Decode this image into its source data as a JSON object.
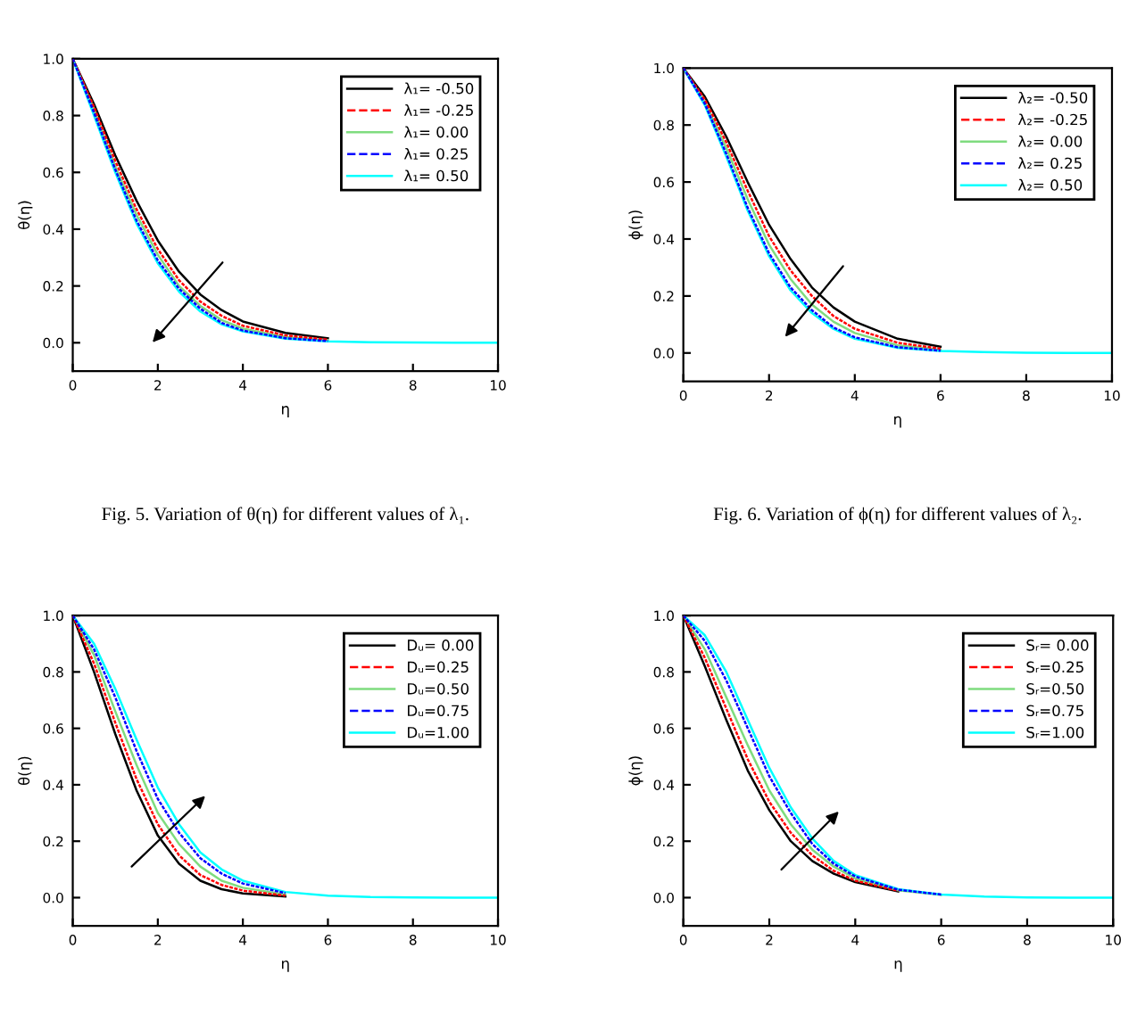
{
  "chart_data": [
    {
      "type": "line",
      "ylabel": "θ(η)",
      "xlabel": "η",
      "annotations": [
        "Fig. 5. Variation of θ(η) for different values of λ₁."
      ],
      "x": [
        0,
        0.5,
        1,
        1.5,
        2,
        2.5,
        3,
        3.5,
        4,
        5,
        6,
        7,
        8,
        9,
        10
      ],
      "xlim": [
        0,
        10
      ],
      "ylim": [
        -0.1,
        1.0
      ],
      "xticks": [
        0,
        2,
        4,
        6,
        8,
        10
      ],
      "yticks": [
        {
          "value": 0,
          "label": "0.0"
        },
        {
          "value": 0.2,
          "label": "0.2"
        },
        {
          "value": 0.4,
          "label": "0.4"
        },
        {
          "value": 0.6,
          "label": "0.6"
        },
        {
          "value": 0.8,
          "label": "0.8"
        },
        {
          "value": 1.0,
          "label": "1.0"
        }
      ],
      "legend": "top right",
      "grid": false,
      "series": [
        {
          "name": "λ₁= -0.50",
          "color": "#000000",
          "line_style": "solid",
          "values": [
            1,
            0.84,
            0.66,
            0.5,
            0.36,
            0.25,
            0.17,
            0.115,
            0.075,
            0.035,
            0.016,
            null,
            null,
            null,
            null
          ]
        },
        {
          "name": "λ₁= -0.25",
          "color": "#ff0000",
          "line_style": "dashed",
          "values": [
            1,
            0.83,
            0.64,
            0.47,
            0.33,
            0.22,
            0.145,
            0.095,
            0.06,
            0.026,
            0.011,
            null,
            null,
            null,
            null
          ]
        },
        {
          "name": "λ₁= 0.00",
          "color": "#7fdc7f",
          "line_style": "solid",
          "values": [
            1,
            0.82,
            0.62,
            0.45,
            0.31,
            0.2,
            0.13,
            0.08,
            0.05,
            0.02,
            0.008,
            null,
            null,
            null,
            null
          ]
        },
        {
          "name": "λ₁= 0.25",
          "color": "#0000ff",
          "line_style": "dashed",
          "values": [
            1,
            0.81,
            0.61,
            0.43,
            0.29,
            0.19,
            0.12,
            0.07,
            0.043,
            0.016,
            0.006,
            null,
            null,
            null,
            null
          ]
        },
        {
          "name": "λ₁= 0.50",
          "color": "#00ffff",
          "line_style": "solid",
          "values": [
            1,
            0.8,
            0.6,
            0.42,
            0.28,
            0.18,
            0.11,
            0.065,
            0.04,
            0.014,
            0.005,
            0.002,
            0.001,
            0,
            0
          ]
        }
      ]
    },
    {
      "type": "line",
      "ylabel": "ϕ(η)",
      "xlabel": "η",
      "annotations": [
        "Fig. 6. Variation of ϕ(η) for different values of λ₂."
      ],
      "x": [
        0,
        0.5,
        1,
        1.5,
        2,
        2.5,
        3,
        3.5,
        4,
        5,
        6,
        7,
        8,
        9,
        10
      ],
      "xlim": [
        0,
        10
      ],
      "ylim": [
        -0.1,
        1.0
      ],
      "xticks": [
        0,
        2,
        4,
        6,
        8,
        10
      ],
      "yticks": [
        {
          "value": 0,
          "label": "0.0"
        },
        {
          "value": 0.2,
          "label": "0.2"
        },
        {
          "value": 0.4,
          "label": "0.4"
        },
        {
          "value": 0.6,
          "label": "0.6"
        },
        {
          "value": 0.8,
          "label": "0.8"
        },
        {
          "value": 1.0,
          "label": "1.0"
        }
      ],
      "legend": "top right",
      "grid": false,
      "series": [
        {
          "name": "λ₂= -0.50",
          "color": "#000000",
          "line_style": "solid",
          "values": [
            1,
            0.9,
            0.76,
            0.6,
            0.45,
            0.33,
            0.23,
            0.16,
            0.11,
            0.05,
            0.022,
            null,
            null,
            null,
            null
          ]
        },
        {
          "name": "λ₂= -0.25",
          "color": "#ff0000",
          "line_style": "dashed",
          "values": [
            1,
            0.89,
            0.74,
            0.57,
            0.41,
            0.29,
            0.2,
            0.13,
            0.085,
            0.036,
            0.015,
            null,
            null,
            null,
            null
          ]
        },
        {
          "name": "λ₂= 0.00",
          "color": "#7fdc7f",
          "line_style": "solid",
          "values": [
            1,
            0.88,
            0.72,
            0.54,
            0.38,
            0.26,
            0.17,
            0.11,
            0.07,
            0.027,
            0.011,
            null,
            null,
            null,
            null
          ]
        },
        {
          "name": "λ₂= 0.25",
          "color": "#0000ff",
          "line_style": "dashed",
          "values": [
            1,
            0.875,
            0.7,
            0.51,
            0.35,
            0.23,
            0.15,
            0.09,
            0.055,
            0.02,
            0.008,
            null,
            null,
            null,
            null
          ]
        },
        {
          "name": "λ₂= 0.50",
          "color": "#00ffff",
          "line_style": "solid",
          "values": [
            1,
            0.87,
            0.69,
            0.5,
            0.34,
            0.22,
            0.14,
            0.085,
            0.05,
            0.018,
            0.007,
            0.003,
            0.001,
            0,
            0
          ]
        }
      ]
    },
    {
      "type": "line",
      "ylabel": "θ(η)",
      "xlabel": "η",
      "x": [
        0,
        0.5,
        1,
        1.5,
        2,
        2.5,
        3,
        3.5,
        4,
        5,
        6,
        7,
        8,
        9,
        10
      ],
      "xlim": [
        0,
        10
      ],
      "ylim": [
        -0.1,
        1.0
      ],
      "xticks": [
        0,
        2,
        4,
        6,
        8,
        10
      ],
      "yticks": [
        {
          "value": 0,
          "label": "0.0"
        },
        {
          "value": 0.2,
          "label": "0.2"
        },
        {
          "value": 0.4,
          "label": "0.4"
        },
        {
          "value": 0.6,
          "label": "0.6"
        },
        {
          "value": 0.8,
          "label": "0.8"
        },
        {
          "value": 1.0,
          "label": "1.0"
        }
      ],
      "legend": "top right",
      "grid": false,
      "series": [
        {
          "name": "Dᵤ= 0.00",
          "color": "#000000",
          "line_style": "solid",
          "values": [
            1,
            0.8,
            0.58,
            0.38,
            0.22,
            0.12,
            0.06,
            0.03,
            0.015,
            0.004,
            null,
            null,
            null,
            null,
            null
          ]
        },
        {
          "name": "Dᵤ=0.25",
          "color": "#ff0000",
          "line_style": "dashed",
          "values": [
            1,
            0.83,
            0.62,
            0.42,
            0.26,
            0.15,
            0.08,
            0.045,
            0.025,
            0.007,
            null,
            null,
            null,
            null,
            null
          ]
        },
        {
          "name": "Dᵤ=0.50",
          "color": "#7fdc7f",
          "line_style": "solid",
          "values": [
            1,
            0.86,
            0.66,
            0.47,
            0.3,
            0.19,
            0.11,
            0.06,
            0.035,
            0.011,
            null,
            null,
            null,
            null,
            null
          ]
        },
        {
          "name": "Dᵤ=0.75",
          "color": "#0000ff",
          "line_style": "dashed",
          "values": [
            1,
            0.88,
            0.71,
            0.52,
            0.35,
            0.23,
            0.14,
            0.085,
            0.05,
            0.016,
            null,
            null,
            null,
            null,
            null
          ]
        },
        {
          "name": "Dᵤ=1.00",
          "color": "#00ffff",
          "line_style": "solid",
          "values": [
            1,
            0.9,
            0.74,
            0.56,
            0.39,
            0.26,
            0.16,
            0.1,
            0.06,
            0.02,
            0.007,
            0.002,
            0.001,
            0,
            0
          ]
        }
      ]
    },
    {
      "type": "line",
      "ylabel": "ϕ(η)",
      "xlabel": "η",
      "x": [
        0,
        0.5,
        1,
        1.5,
        2,
        2.5,
        3,
        3.5,
        4,
        5,
        6,
        7,
        8,
        9,
        10
      ],
      "xlim": [
        0,
        10
      ],
      "ylim": [
        -0.1,
        1.0
      ],
      "xticks": [
        0,
        2,
        4,
        6,
        8,
        10
      ],
      "yticks": [
        {
          "value": 0,
          "label": "0.0"
        },
        {
          "value": 0.2,
          "label": "0.2"
        },
        {
          "value": 0.4,
          "label": "0.4"
        },
        {
          "value": 0.6,
          "label": "0.6"
        },
        {
          "value": 0.8,
          "label": "0.8"
        },
        {
          "value": 1.0,
          "label": "1.0"
        }
      ],
      "legend": "top right",
      "grid": false,
      "series": [
        {
          "name": "Sᵣ= 0.00",
          "color": "#000000",
          "line_style": "solid",
          "values": [
            1,
            0.82,
            0.63,
            0.45,
            0.31,
            0.2,
            0.13,
            0.085,
            0.055,
            0.022,
            null,
            null,
            null,
            null,
            null
          ]
        },
        {
          "name": "Sᵣ=0.25",
          "color": "#ff0000",
          "line_style": "dashed",
          "values": [
            1,
            0.85,
            0.67,
            0.49,
            0.34,
            0.23,
            0.15,
            0.095,
            0.06,
            0.024,
            null,
            null,
            null,
            null,
            null
          ]
        },
        {
          "name": "Sᵣ=0.50",
          "color": "#7fdc7f",
          "line_style": "solid",
          "values": [
            1,
            0.88,
            0.71,
            0.54,
            0.38,
            0.26,
            0.17,
            0.11,
            0.068,
            0.026,
            0.01,
            null,
            null,
            null,
            null
          ]
        },
        {
          "name": "Sᵣ=0.75",
          "color": "#0000ff",
          "line_style": "dashed",
          "values": [
            1,
            0.91,
            0.77,
            0.6,
            0.43,
            0.3,
            0.19,
            0.12,
            0.075,
            0.028,
            0.011,
            null,
            null,
            null,
            null
          ]
        },
        {
          "name": "Sᵣ=1.00",
          "color": "#00ffff",
          "line_style": "solid",
          "values": [
            1,
            0.93,
            0.8,
            0.63,
            0.46,
            0.32,
            0.21,
            0.13,
            0.08,
            0.03,
            0.011,
            0.004,
            0.001,
            0,
            0
          ]
        }
      ]
    }
  ]
}
